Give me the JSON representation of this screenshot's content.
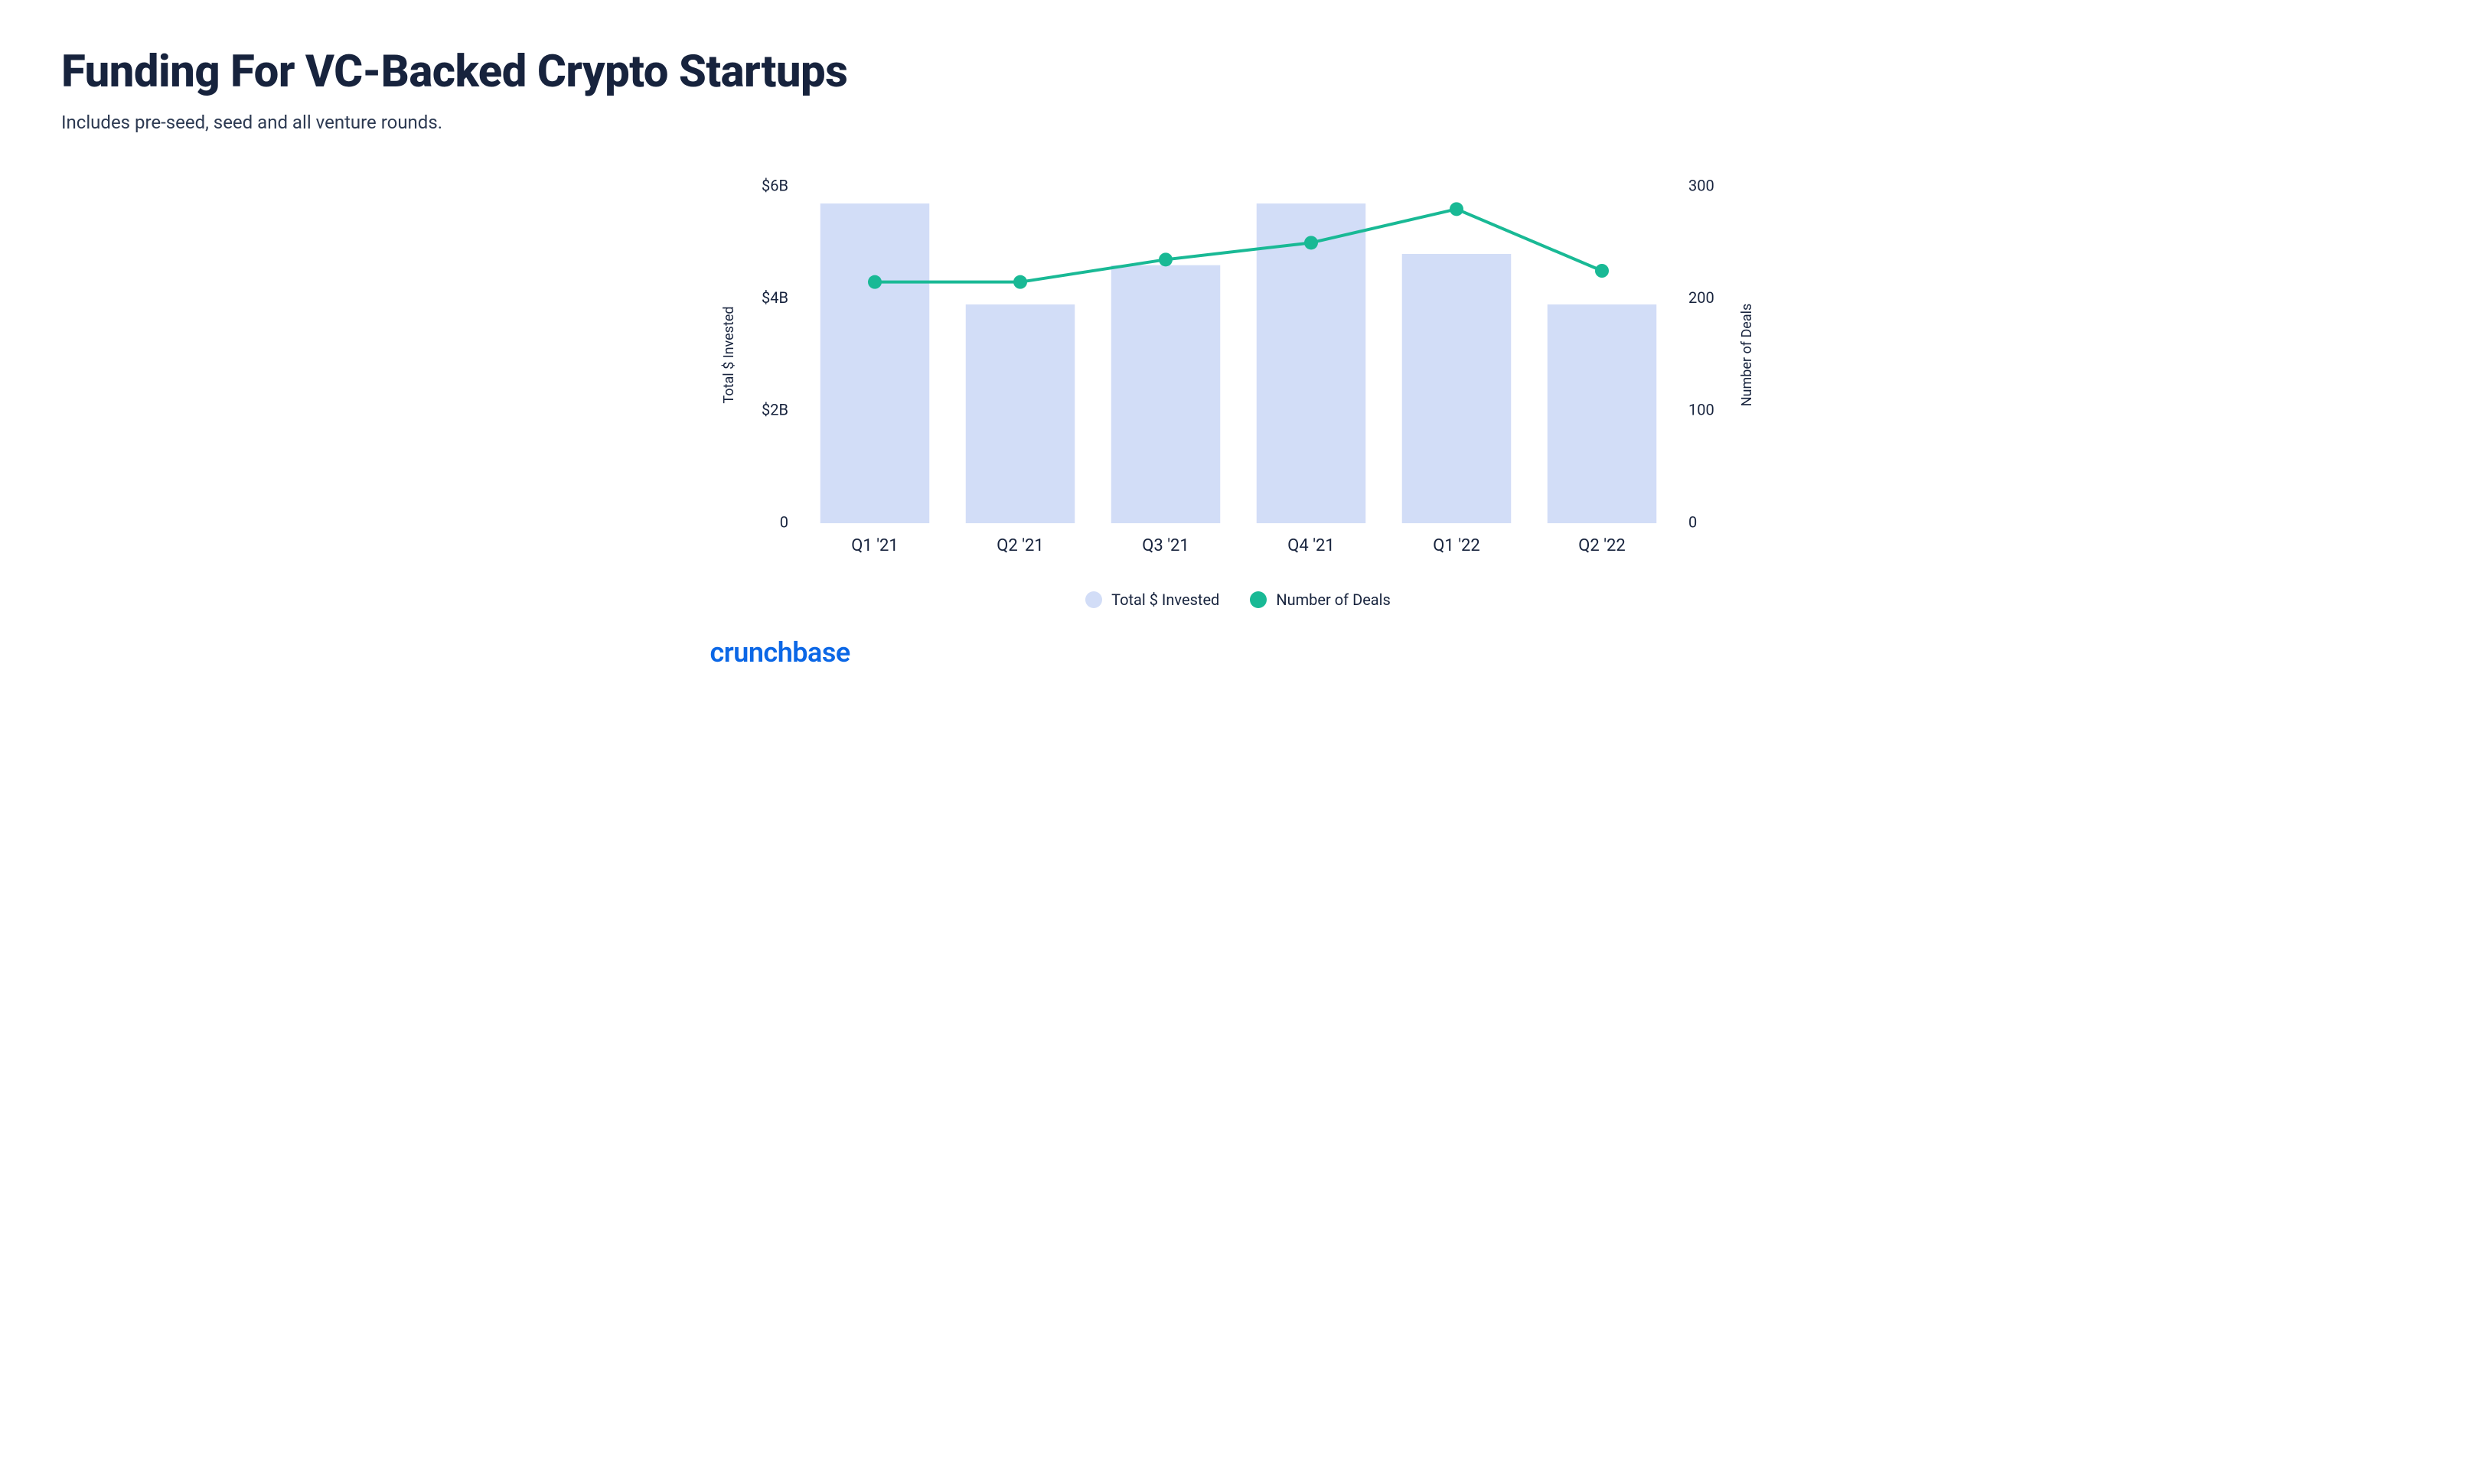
{
  "title": "Funding For VC-Backed Crypto Startups",
  "subtitle": "Includes pre-seed, seed and all venture rounds.",
  "brand": "crunchbase",
  "brand_color": "#0b67e6",
  "colors": {
    "bar": "#d2ddf7",
    "line": "#19b995",
    "text": "#17233d",
    "background": "#ffffff"
  },
  "chart": {
    "type": "bar+line",
    "categories": [
      "Q1 '21",
      "Q2 '21",
      "Q3 '21",
      "Q4 '21",
      "Q1 '22",
      "Q2 '22"
    ],
    "bar_series": {
      "label": "Total $ Invested",
      "values": [
        5.7,
        3.9,
        4.6,
        5.7,
        4.8,
        3.9
      ],
      "axis_title": "Total $ Invested",
      "ylim": [
        0,
        6
      ],
      "yticks": [
        0,
        2,
        4,
        6
      ],
      "ytick_labels": [
        "0",
        "$2B",
        "$4B",
        "$6B"
      ]
    },
    "line_series": {
      "label": "Number of Deals",
      "values": [
        215,
        215,
        235,
        250,
        280,
        225
      ],
      "axis_title": "Number of Deals",
      "ylim": [
        0,
        300
      ],
      "yticks": [
        0,
        100,
        200,
        300
      ],
      "ytick_labels": [
        "0",
        "100",
        "200",
        "300"
      ]
    },
    "bar_width_ratio": 0.75,
    "marker_radius": 9,
    "line_width": 4,
    "title_fontsize": 58,
    "subtitle_fontsize": 24,
    "label_fontsize": 20,
    "cat_label_fontsize": 22
  },
  "legend": {
    "items": [
      {
        "label": "Total $ Invested",
        "color": "#d2ddf7"
      },
      {
        "label": "Number of Deals",
        "color": "#19b995"
      }
    ]
  }
}
